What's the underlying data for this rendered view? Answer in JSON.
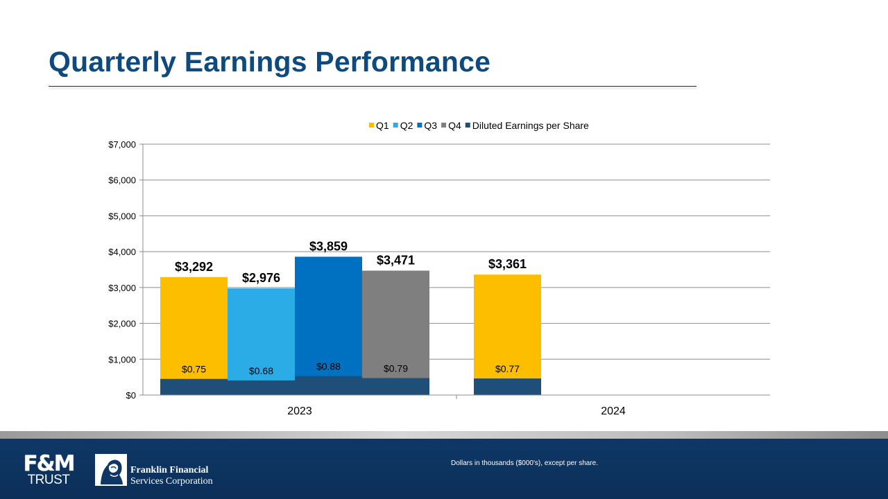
{
  "slide": {
    "title": "Quarterly Earnings Performance",
    "footnote": "Dollars in thousands ($000's), except per share.",
    "logos": {
      "fm_line1": "F&M",
      "fm_line2": "TRUST",
      "ffsc_line1": "Franklin Financial",
      "ffsc_line2": "Services Corporation"
    }
  },
  "chart_data": {
    "type": "bar",
    "title": "",
    "xlabel": "",
    "ylabel": "",
    "ylim": [
      0,
      7000
    ],
    "ytick_step": 1000,
    "ytick_labels": [
      "$0",
      "$1,000",
      "$2,000",
      "$3,000",
      "$4,000",
      "$5,000",
      "$6,000",
      "$7,000"
    ],
    "grid": true,
    "legend_position": "top",
    "categories": [
      "2023",
      "2024"
    ],
    "series": [
      {
        "name": "Q1",
        "color": "#fdbe00",
        "values": [
          3292,
          3361
        ],
        "labels": [
          "$3,292",
          "$3,361"
        ]
      },
      {
        "name": "Q2",
        "color": "#2bace6",
        "values": [
          2976,
          null
        ],
        "labels": [
          "$2,976",
          ""
        ]
      },
      {
        "name": "Q3",
        "color": "#0070c0",
        "values": [
          3859,
          null
        ],
        "labels": [
          "$3,859",
          ""
        ]
      },
      {
        "name": "Q4",
        "color": "#7f7f7f",
        "values": [
          3471,
          null
        ],
        "labels": [
          "$3,471",
          ""
        ]
      }
    ],
    "eps_series": {
      "name": "Diluted Earnings per Share",
      "color": "#1f4e79",
      "values": [
        [
          0.75,
          0.68,
          0.88,
          0.79
        ],
        [
          0.77,
          null,
          null,
          null
        ]
      ],
      "labels": [
        [
          "$0.75",
          "$0.68",
          "$0.88",
          "$0.79"
        ],
        [
          "$0.77",
          "",
          "",
          ""
        ]
      ],
      "bar_scale": 600
    }
  }
}
